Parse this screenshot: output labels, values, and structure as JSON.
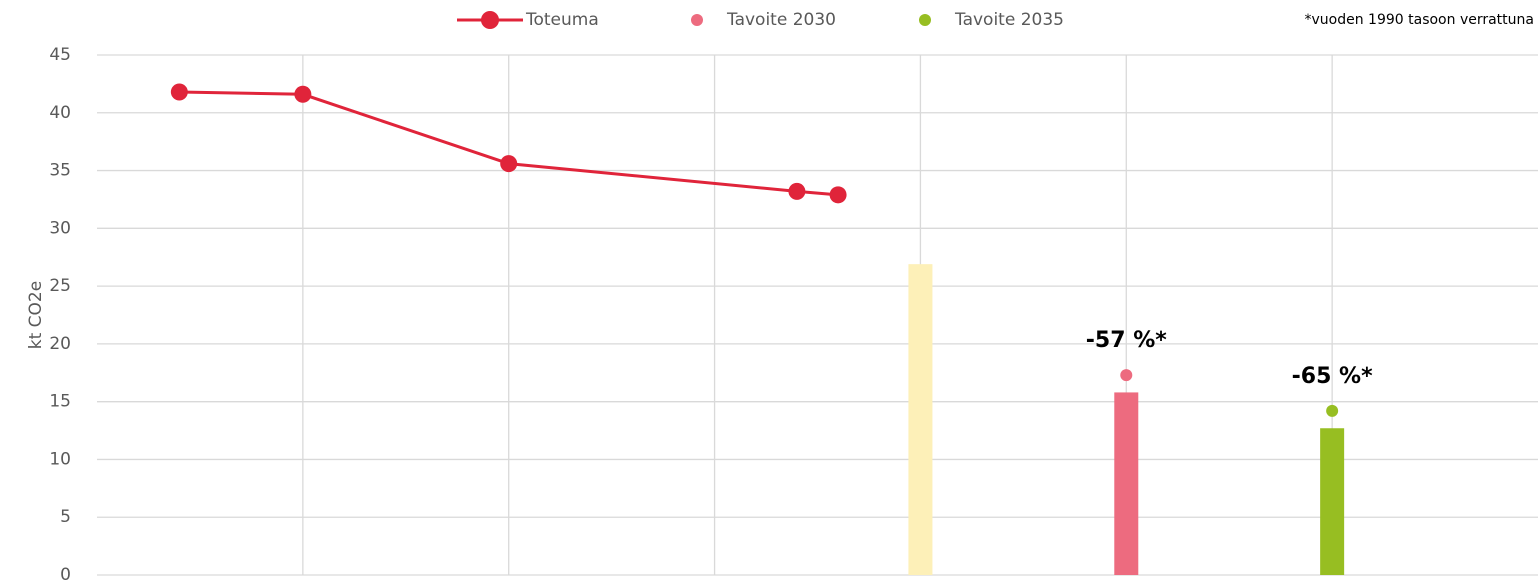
{
  "chart_data": {
    "type": "line",
    "y_label": "kt CO2e",
    "note": "*vuoden 1990 tasoon verrattuna",
    "xlim": [
      0,
      35
    ],
    "xticks": [
      5,
      10,
      15,
      20,
      25,
      30
    ],
    "ylim": [
      0,
      45
    ],
    "yticks": [
      0,
      5,
      10,
      15,
      20,
      25,
      30,
      35,
      40,
      45
    ],
    "grid": true,
    "series": [
      {
        "name": "Toteuma",
        "color": "#e0243a",
        "x": [
          2,
          5,
          10,
          17,
          18
        ],
        "values": [
          41.8,
          41.6,
          35.6,
          33.2,
          32.9
        ]
      },
      {
        "name": "Tavoite 2030",
        "color": "#ed6b7f",
        "x": [
          25
        ],
        "values": [
          17.3
        ],
        "annotation": "-57 %*"
      },
      {
        "name": "Tavoite 2035",
        "color": "#97be22",
        "x": [
          30
        ],
        "values": [
          14.2
        ],
        "annotation": "-65 %*"
      }
    ],
    "bars": [
      {
        "x": 20,
        "value": 26.9,
        "color": "#fdf0b8"
      },
      {
        "x": 25,
        "value": 15.8,
        "color": "#ed6b7f"
      },
      {
        "x": 30,
        "value": 12.7,
        "color": "#97be22"
      }
    ]
  }
}
